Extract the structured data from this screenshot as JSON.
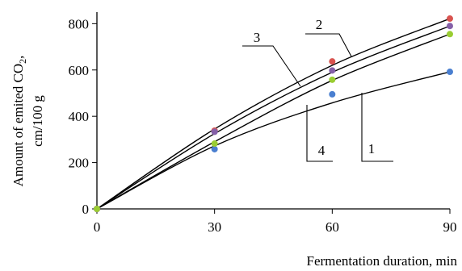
{
  "chart_data": {
    "type": "line",
    "title": "",
    "xlabel": "Fermentation duration, min",
    "ylabel_line1": "Amount of emited CO",
    "ylabel_sub": "2",
    "ylabel_comma": ",",
    "ylabel_line2": "cm/100 g",
    "xlim": [
      0,
      90
    ],
    "ylim": [
      0,
      850
    ],
    "x_ticks": [
      0,
      30,
      60,
      90
    ],
    "y_ticks": [
      0,
      200,
      400,
      600,
      800
    ],
    "grid": false,
    "legend": "none",
    "series": [
      {
        "label": "1",
        "color": "#4a7fd0",
        "x": [
          0,
          30,
          60,
          90
        ],
        "points": [
          0,
          258,
          495,
          592
        ],
        "curve": [
          0,
          272,
          458,
          592
        ]
      },
      {
        "label": "2",
        "color": "#d9534f",
        "x": [
          0,
          30,
          60,
          90
        ],
        "points": [
          0,
          338,
          637,
          822
        ],
        "curve": [
          0,
          345,
          620,
          822
        ]
      },
      {
        "label": "3",
        "color": "#8560a8",
        "x": [
          0,
          30,
          60,
          90
        ],
        "points": [
          0,
          333,
          598,
          790
        ],
        "curve": [
          0,
          325,
          590,
          790
        ]
      },
      {
        "label": "4",
        "color": "#9acd32",
        "x": [
          0,
          30,
          60,
          90
        ],
        "points": [
          0,
          282,
          558,
          755
        ],
        "curve": [
          0,
          290,
          555,
          755
        ]
      }
    ]
  }
}
